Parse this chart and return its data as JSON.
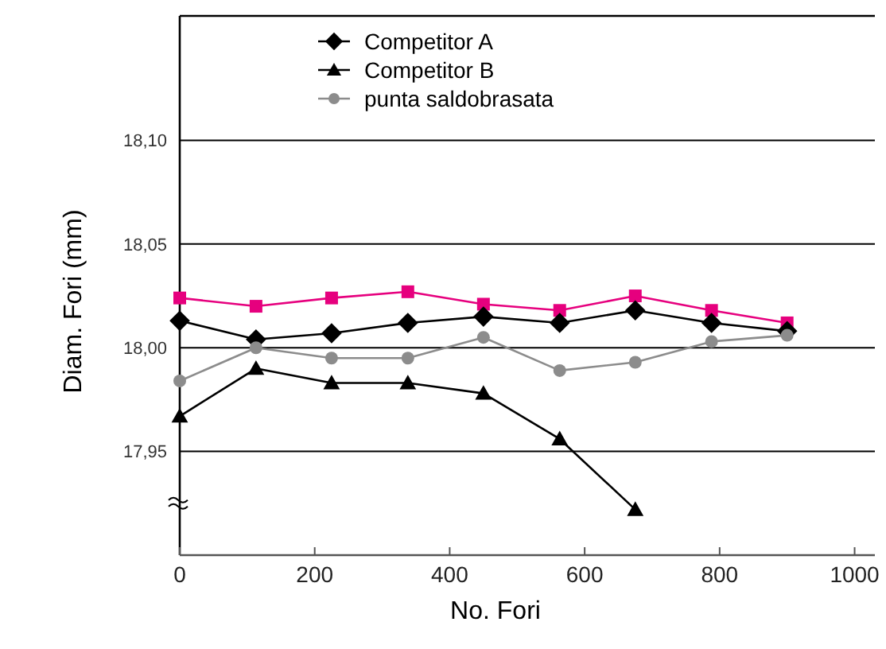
{
  "chart_data": {
    "type": "line",
    "xlabel": "No. Fori",
    "ylabel": "Diam. Fori (mm)",
    "xlim": [
      0,
      1030
    ],
    "xticks": [
      0,
      200,
      400,
      600,
      800,
      1000
    ],
    "ylim": [
      17.9,
      18.16
    ],
    "yticks": [
      {
        "value": 17.95,
        "label": "17,95"
      },
      {
        "value": 18.0,
        "label": "18,00"
      },
      {
        "value": 18.05,
        "label": "18,05"
      },
      {
        "value": 18.1,
        "label": "18,10"
      }
    ],
    "grid": "y",
    "legend": "top",
    "x": [
      0,
      113,
      225,
      338,
      450,
      563,
      675,
      788,
      900
    ],
    "series": [
      {
        "color": "#e6007e",
        "marker": "square",
        "values": [
          18.024,
          18.02,
          18.024,
          18.027,
          18.021,
          18.018,
          18.025,
          18.018,
          18.012
        ]
      },
      {
        "name": "Competitor A",
        "color": "#000000",
        "marker": "diamond",
        "values": [
          18.013,
          18.004,
          18.007,
          18.012,
          18.015,
          18.012,
          18.018,
          18.012,
          18.008
        ]
      },
      {
        "name": "Competitor B",
        "color": "#000000",
        "marker": "triangle",
        "values": [
          17.967,
          17.99,
          17.983,
          17.983,
          17.978,
          17.956,
          17.922,
          null,
          null
        ]
      },
      {
        "name": "punta saldobrasata",
        "color": "#8c8c8c",
        "marker": "circle",
        "values": [
          17.984,
          18.0,
          17.995,
          17.995,
          18.005,
          17.989,
          17.993,
          18.003,
          18.006
        ]
      }
    ]
  }
}
